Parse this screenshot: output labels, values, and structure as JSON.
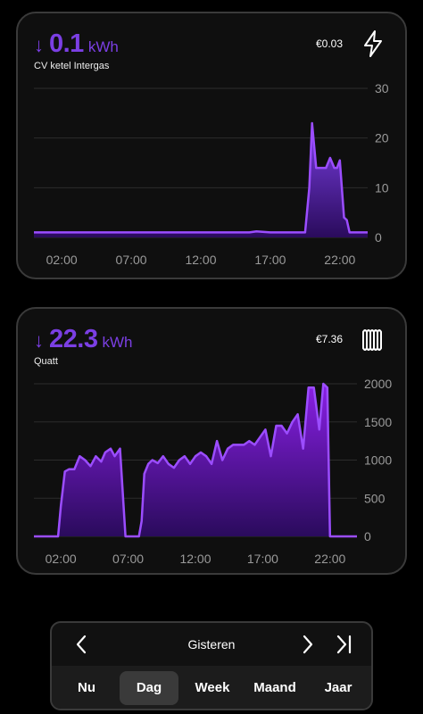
{
  "cards": [
    {
      "direction_arrow": "↓",
      "value": "0.1",
      "unit": "kWh",
      "name": "CV ketel Intergas",
      "cost": "€0.03",
      "icon": "lightning-bolt-icon",
      "chart_data": {
        "type": "area",
        "x_tick_labels": [
          "02:00",
          "07:00",
          "12:00",
          "17:00",
          "22:00"
        ],
        "y_tick_labels": [
          "30",
          "20",
          "10",
          "0"
        ],
        "ylim": [
          0,
          30
        ],
        "xlim": [
          0,
          24
        ],
        "grid": true,
        "color": "#7b3fe4",
        "x": [
          0,
          2,
          4,
          6,
          8,
          10,
          12,
          14,
          15.5,
          16,
          17,
          18,
          19,
          19.5,
          19.8,
          20,
          20.3,
          20.6,
          21,
          21.3,
          21.6,
          21.8,
          22,
          22.3,
          22.5,
          22.7,
          23,
          24
        ],
        "values": [
          1,
          1,
          1,
          1,
          1,
          1,
          1,
          1,
          1,
          1.2,
          1,
          1,
          1,
          1,
          10,
          23,
          14,
          14,
          14,
          16,
          14,
          14,
          15.5,
          4,
          3.5,
          1,
          1,
          1
        ]
      }
    },
    {
      "direction_arrow": "↓",
      "value": "22.3",
      "unit": "kWh",
      "name": "Quatt",
      "cost": "€7.36",
      "icon": "radiator-icon",
      "chart_data": {
        "type": "area",
        "x_tick_labels": [
          "02:00",
          "07:00",
          "12:00",
          "17:00",
          "22:00"
        ],
        "y_tick_labels": [
          "2000",
          "1500",
          "1000",
          "500",
          "0"
        ],
        "ylim": [
          0,
          2000
        ],
        "xlim": [
          0,
          24
        ],
        "grid": true,
        "color": "#8a1fe6",
        "x": [
          0,
          1.8,
          2.0,
          2.3,
          2.6,
          3.0,
          3.4,
          3.8,
          4.2,
          4.6,
          5.0,
          5.3,
          5.7,
          6.0,
          6.4,
          6.8,
          7.1,
          7.5,
          7.8,
          8.0,
          8.2,
          8.5,
          8.8,
          9.2,
          9.6,
          10.0,
          10.4,
          10.8,
          11.2,
          11.6,
          12.0,
          12.4,
          12.8,
          13.2,
          13.6,
          14.0,
          14.4,
          14.8,
          15.2,
          15.6,
          16.0,
          16.4,
          16.8,
          17.2,
          17.6,
          18.0,
          18.4,
          18.8,
          19.2,
          19.6,
          20.0,
          20.4,
          20.8,
          21.2,
          21.5,
          21.8,
          22.0,
          24
        ],
        "values": [
          0,
          0,
          400,
          850,
          880,
          880,
          1050,
          1000,
          920,
          1050,
          980,
          1100,
          1150,
          1050,
          1150,
          0,
          0,
          0,
          0,
          200,
          820,
          950,
          1000,
          960,
          1050,
          950,
          900,
          1000,
          1050,
          950,
          1050,
          1100,
          1050,
          950,
          1250,
          1000,
          1150,
          1200,
          1200,
          1200,
          1250,
          1200,
          1300,
          1400,
          1050,
          1450,
          1450,
          1350,
          1500,
          1600,
          1150,
          1950,
          1950,
          1400,
          2000,
          1950,
          0,
          0
        ]
      }
    }
  ],
  "period_selector": {
    "label": "Gisteren",
    "tabs": [
      "Nu",
      "Dag",
      "Week",
      "Maand",
      "Jaar"
    ],
    "active_tab": "Dag"
  }
}
